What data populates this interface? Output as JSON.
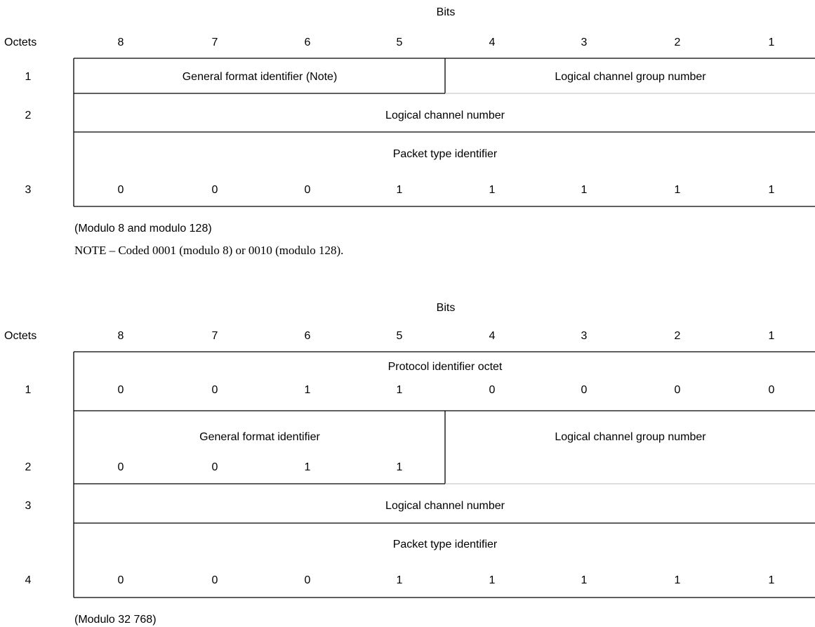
{
  "diagram_1": {
    "bits_label": "Bits",
    "octets_label": "Octets",
    "bit_numbers": [
      "8",
      "7",
      "6",
      "5",
      "4",
      "3",
      "2",
      "1"
    ],
    "rows": {
      "octet_1": {
        "number": "1",
        "left_field": "General format identifier (Note)",
        "right_field": "Logical channel group number"
      },
      "octet_2": {
        "number": "2",
        "field": "Logical channel number"
      },
      "octet_3": {
        "number": "3",
        "field": "Packet type identifier",
        "bits": [
          "0",
          "0",
          "0",
          "1",
          "1",
          "1",
          "1",
          "1"
        ]
      }
    },
    "caption": "(Modulo 8 and modulo 128)",
    "note": "NOTE – Coded 0001 (modulo 8) or 0010 (modulo 128)."
  },
  "diagram_2": {
    "bits_label": "Bits",
    "octets_label": "Octets",
    "bit_numbers": [
      "8",
      "7",
      "6",
      "5",
      "4",
      "3",
      "2",
      "1"
    ],
    "rows": {
      "octet_1": {
        "number": "1",
        "field": "Protocol identifier octet",
        "bits": [
          "0",
          "0",
          "1",
          "1",
          "0",
          "0",
          "0",
          "0"
        ]
      },
      "octet_2": {
        "number": "2",
        "left_field": "General format identifier",
        "left_bits": [
          "0",
          "0",
          "1",
          "1"
        ],
        "right_field": "Logical channel group number"
      },
      "octet_3": {
        "number": "3",
        "field": "Logical channel number"
      },
      "octet_4": {
        "number": "4",
        "field": "Packet type identifier",
        "bits": [
          "0",
          "0",
          "0",
          "1",
          "1",
          "1",
          "1",
          "1"
        ]
      }
    },
    "caption": "(Modulo 32 768)"
  }
}
